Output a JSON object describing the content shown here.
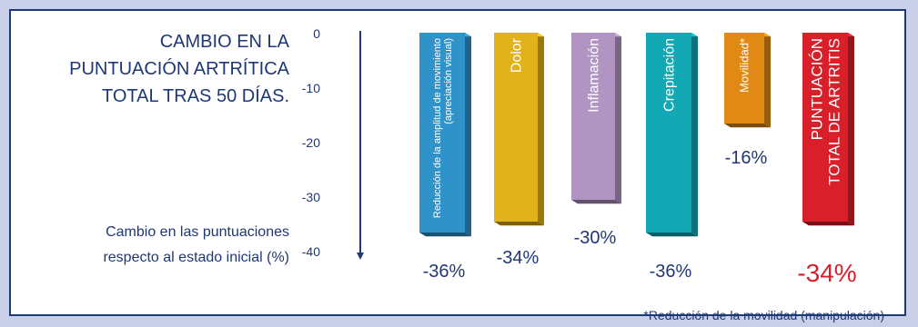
{
  "chart_data": {
    "type": "bar",
    "title_lines": [
      "CAMBIO EN LA",
      "PUNTUACIÓN ARTRÍTICA",
      "TOTAL TRAS 50 DÍAS."
    ],
    "ylabel_lines": [
      "Cambio en las puntuaciones",
      "respecto al estado inicial (%)"
    ],
    "yticks": [
      "0",
      "-10",
      "-20",
      "-30",
      "-40"
    ],
    "ylim": [
      -40,
      0
    ],
    "categories": [
      [
        "Reducción de la amplitud de movimiento",
        "(apreciación visual)"
      ],
      [
        "Dolor"
      ],
      [
        "Inflamación"
      ],
      [
        "Crepitación"
      ],
      [
        "Movilidad*"
      ],
      [
        "PUNTUACIÓN",
        "TOTAL DE ARTRITIS"
      ]
    ],
    "values": [
      -36,
      -34,
      -30,
      -36,
      -16,
      -34
    ],
    "value_labels": [
      "-36%",
      "-34%",
      "-30%",
      "-36%",
      "-16%",
      "-34%"
    ],
    "colors": [
      "#2f93c9",
      "#e2b21a",
      "#b094c2",
      "#12a9b4",
      "#e08a15",
      "#d81f2a"
    ],
    "footnote": "*Reducción de la movilidad (manipulación)"
  }
}
